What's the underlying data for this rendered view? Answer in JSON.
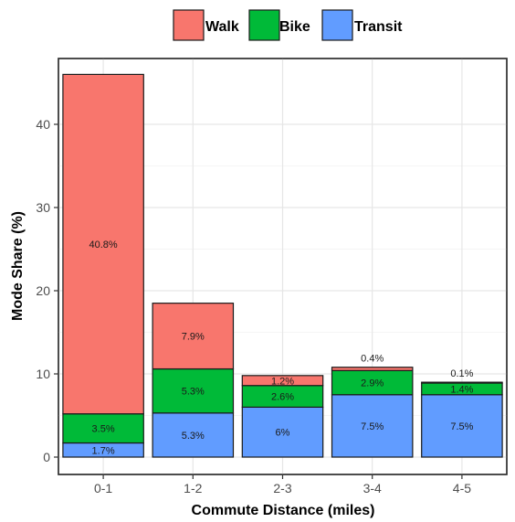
{
  "chart_data": {
    "type": "bar",
    "stacked": true,
    "categories": [
      "0-1",
      "1-2",
      "2-3",
      "3-4",
      "4-5"
    ],
    "xlabel": "Commute Distance (miles)",
    "ylabel": "Mode Share (%)",
    "ylim": [
      0,
      47
    ],
    "yticks": [
      0,
      10,
      20,
      30,
      40
    ],
    "grid": true,
    "legend_position": "top",
    "series": [
      {
        "name": "Transit",
        "color": "#619CFF",
        "values": [
          1.7,
          5.3,
          6,
          7.5,
          7.5
        ],
        "labels": [
          "1.7%",
          "5.3%",
          "6%",
          "7.5%",
          "7.5%"
        ]
      },
      {
        "name": "Bike",
        "color": "#00BA38",
        "values": [
          3.5,
          5.3,
          2.6,
          2.9,
          1.4
        ],
        "labels": [
          "3.5%",
          "5.3%",
          "2.6%",
          "2.9%",
          "1.4%"
        ]
      },
      {
        "name": "Walk",
        "color": "#F8766D",
        "values": [
          40.8,
          7.9,
          1.2,
          0.4,
          0.1
        ],
        "labels": [
          "40.8%",
          "7.9%",
          "1.2%",
          "0.4%",
          "0.1%"
        ]
      }
    ],
    "legend_order": [
      "Walk",
      "Bike",
      "Transit"
    ]
  }
}
